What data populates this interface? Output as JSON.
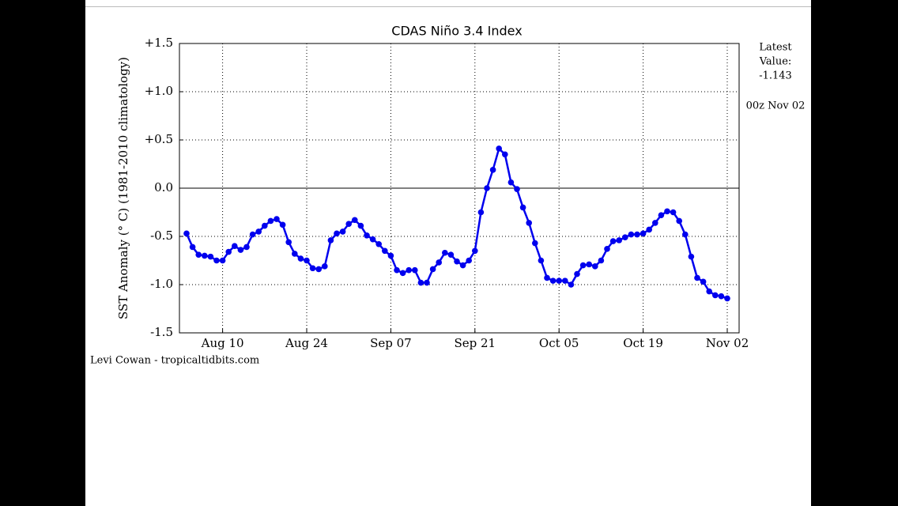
{
  "chart_data": {
    "type": "line",
    "title": "CDAS Niño 3.4 Index",
    "y_label": "SST Anomaly (° C) (1981-2010 climatology)",
    "latest_line1": "Latest",
    "latest_line2": "Value:",
    "latest_value": -1.143,
    "latest_time": "00z Nov 02",
    "credit": "Levi Cowan - tropicaltidbits.com",
    "x": [
      "Aug 04",
      "Aug 05",
      "Aug 06",
      "Aug 07",
      "Aug 08",
      "Aug 09",
      "Aug 10",
      "Aug 11",
      "Aug 12",
      "Aug 13",
      "Aug 14",
      "Aug 15",
      "Aug 16",
      "Aug 17",
      "Aug 18",
      "Aug 19",
      "Aug 20",
      "Aug 21",
      "Aug 22",
      "Aug 23",
      "Aug 24",
      "Aug 25",
      "Aug 26",
      "Aug 27",
      "Aug 28",
      "Aug 29",
      "Aug 30",
      "Aug 31",
      "Sep 01",
      "Sep 02",
      "Sep 03",
      "Sep 04",
      "Sep 05",
      "Sep 06",
      "Sep 07",
      "Sep 08",
      "Sep 09",
      "Sep 10",
      "Sep 11",
      "Sep 12",
      "Sep 13",
      "Sep 14",
      "Sep 15",
      "Sep 16",
      "Sep 17",
      "Sep 18",
      "Sep 19",
      "Sep 20",
      "Sep 21",
      "Sep 22",
      "Sep 23",
      "Sep 24",
      "Sep 25",
      "Sep 26",
      "Sep 27",
      "Sep 28",
      "Sep 29",
      "Sep 30",
      "Oct 01",
      "Oct 02",
      "Oct 03",
      "Oct 04",
      "Oct 05",
      "Oct 06",
      "Oct 07",
      "Oct 08",
      "Oct 09",
      "Oct 10",
      "Oct 11",
      "Oct 12",
      "Oct 13",
      "Oct 14",
      "Oct 15",
      "Oct 16",
      "Oct 17",
      "Oct 18",
      "Oct 19",
      "Oct 20",
      "Oct 21",
      "Oct 22",
      "Oct 23",
      "Oct 24",
      "Oct 25",
      "Oct 26",
      "Oct 27",
      "Oct 28",
      "Oct 29",
      "Oct 30",
      "Oct 31",
      "Nov 01",
      "Nov 02"
    ],
    "series": [
      {
        "color": "#0000ee",
        "values": [
          -0.47,
          -0.61,
          -0.69,
          -0.7,
          -0.71,
          -0.75,
          -0.75,
          -0.66,
          -0.6,
          -0.64,
          -0.61,
          -0.48,
          -0.45,
          -0.39,
          -0.34,
          -0.32,
          -0.38,
          -0.56,
          -0.68,
          -0.73,
          -0.75,
          -0.83,
          -0.84,
          -0.81,
          -0.54,
          -0.47,
          -0.45,
          -0.37,
          -0.33,
          -0.39,
          -0.49,
          -0.53,
          -0.58,
          -0.65,
          -0.7,
          -0.85,
          -0.88,
          -0.85,
          -0.85,
          -0.98,
          -0.98,
          -0.84,
          -0.77,
          -0.67,
          -0.69,
          -0.76,
          -0.8,
          -0.75,
          -0.65,
          -0.25,
          0.0,
          0.19,
          0.41,
          0.35,
          0.06,
          -0.01,
          -0.2,
          -0.36,
          -0.57,
          -0.75,
          -0.93,
          -0.96,
          -0.96,
          -0.96,
          -1.0,
          -0.89,
          -0.8,
          -0.79,
          -0.81,
          -0.75,
          -0.63,
          -0.55,
          -0.54,
          -0.51,
          -0.48,
          -0.48,
          -0.47,
          -0.43,
          -0.36,
          -0.28,
          -0.24,
          -0.25,
          -0.34,
          -0.48,
          -0.71,
          -0.93,
          -0.97,
          -1.07,
          -1.11,
          -1.12,
          -1.143
        ]
      }
    ],
    "xticks": [
      "Aug 10",
      "Aug 24",
      "Sep 07",
      "Sep 21",
      "Oct 05",
      "Oct 19",
      "Nov 02"
    ],
    "ylim": [
      -1.5,
      1.5
    ],
    "yticks": [
      -1.5,
      {
        "value": -1.0,
        "label": "-1.0"
      },
      -0.5,
      {
        "value": 0,
        "label": "0.0"
      },
      {
        "value": 0.5,
        "label": "+0.5"
      },
      {
        "value": 1.0,
        "label": "+1.0"
      },
      {
        "value": 1.5,
        "label": "+1.5"
      }
    ],
    "hline": 0,
    "grid": true
  }
}
